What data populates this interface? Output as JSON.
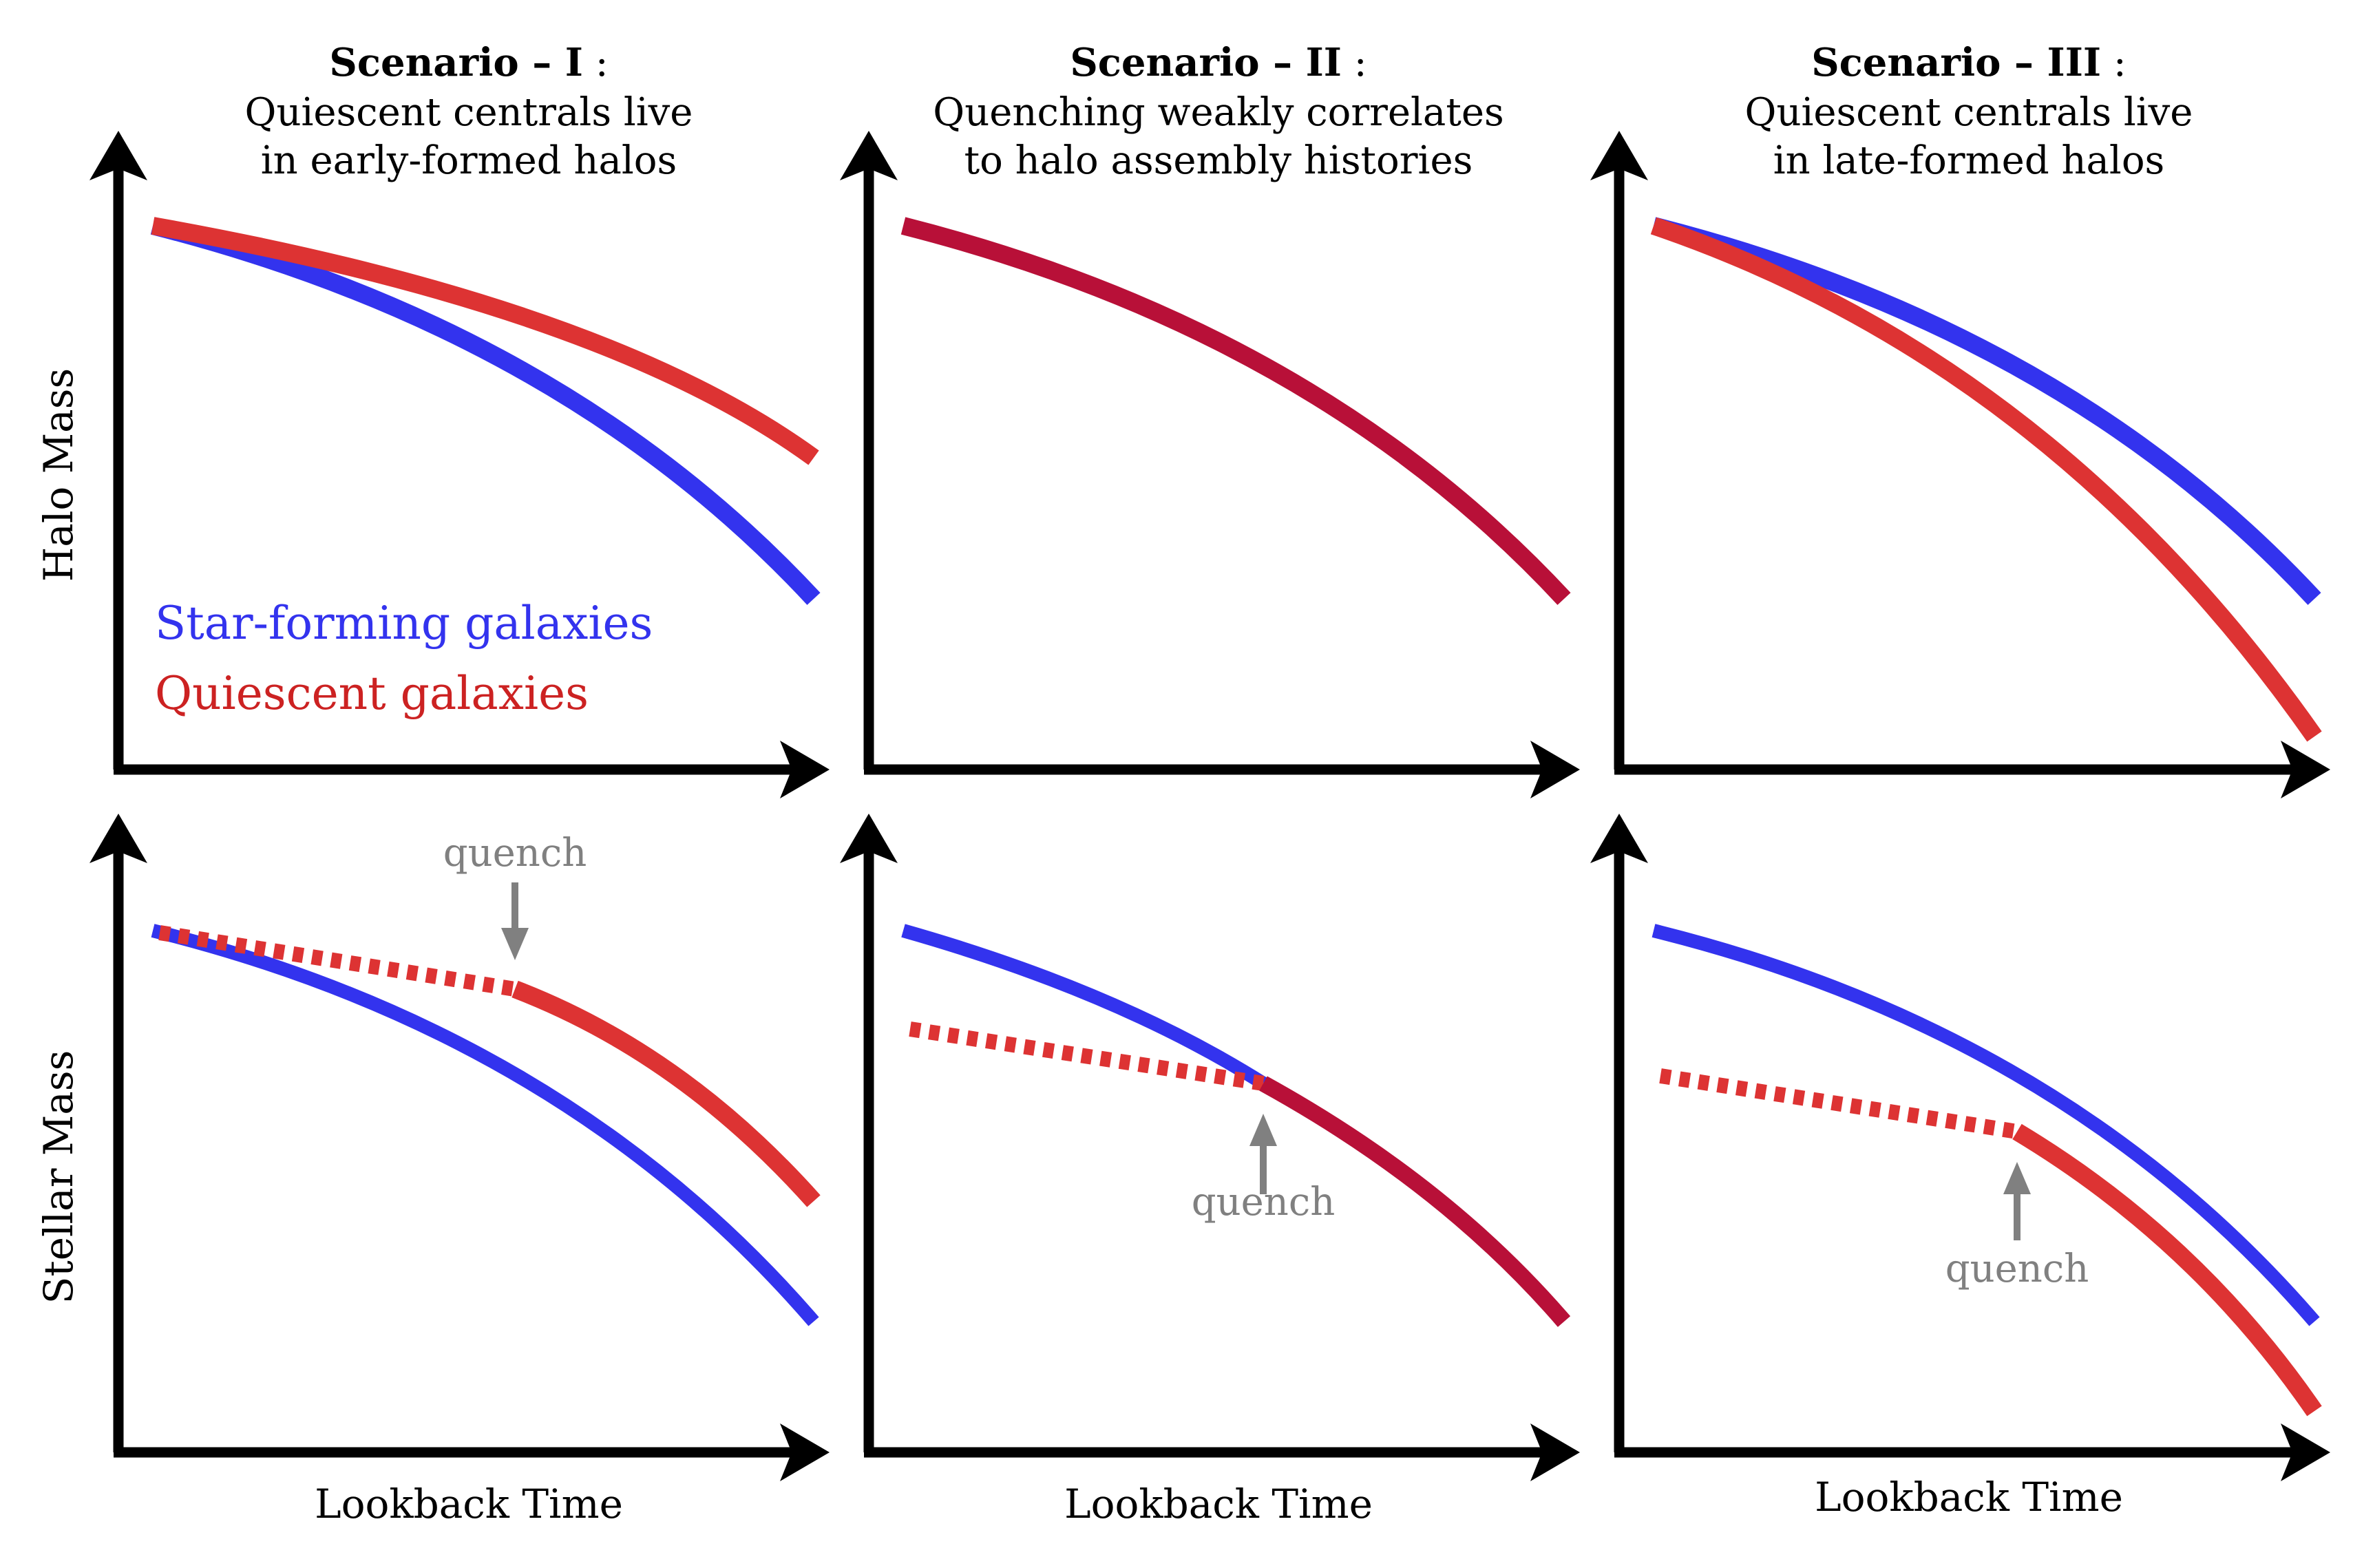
{
  "colors": {
    "star_forming": "#3333ee",
    "quiescent": "#dd3333",
    "overlap": "#b81038",
    "axis": "#000000",
    "annotation": "#808080"
  },
  "labels": {
    "y_top": "Halo Mass",
    "y_bottom": "Stellar Mass",
    "x_label": "Lookback Time",
    "legend_star_forming": "Star-forming galaxies",
    "legend_quiescent": "Quiescent galaxies",
    "quench": "quench"
  },
  "scenarios": [
    {
      "heading": "Scenario – I",
      "colon": " :",
      "line1": "Quiescent centrals live",
      "line2": "in early-formed halos"
    },
    {
      "heading": "Scenario – II",
      "colon": " :",
      "line1": "Quenching weakly correlates",
      "line2": "to halo assembly histories"
    },
    {
      "heading": "Scenario – III",
      "colon": " :",
      "line1": "Quiescent centrals live",
      "line2": "in late-formed halos"
    }
  ]
}
